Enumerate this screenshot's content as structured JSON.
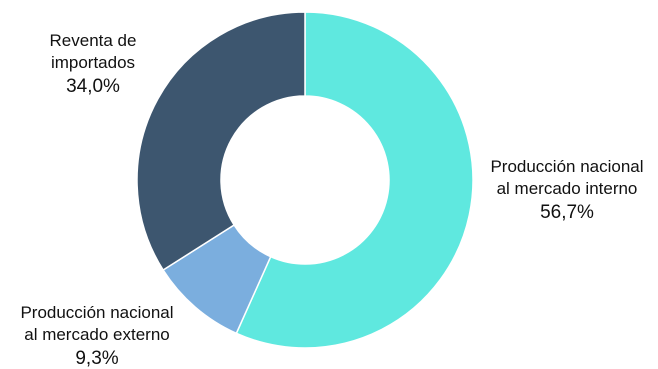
{
  "chart_data": {
    "type": "pie",
    "donut": true,
    "slices": [
      {
        "label_lines": [
          "Producción nacional",
          "al mercado interno"
        ],
        "value": 56.7,
        "value_label": "56,7%",
        "color": "#5FE8DF"
      },
      {
        "label_lines": [
          "Producción nacional",
          "al mercado externo"
        ],
        "value": 9.3,
        "value_label": "9,3%",
        "color": "#7BAEDE"
      },
      {
        "label_lines": [
          "Reventa de",
          "importados"
        ],
        "value": 34.0,
        "value_label": "34,0%",
        "color": "#3D566F"
      }
    ],
    "legend": "none"
  }
}
